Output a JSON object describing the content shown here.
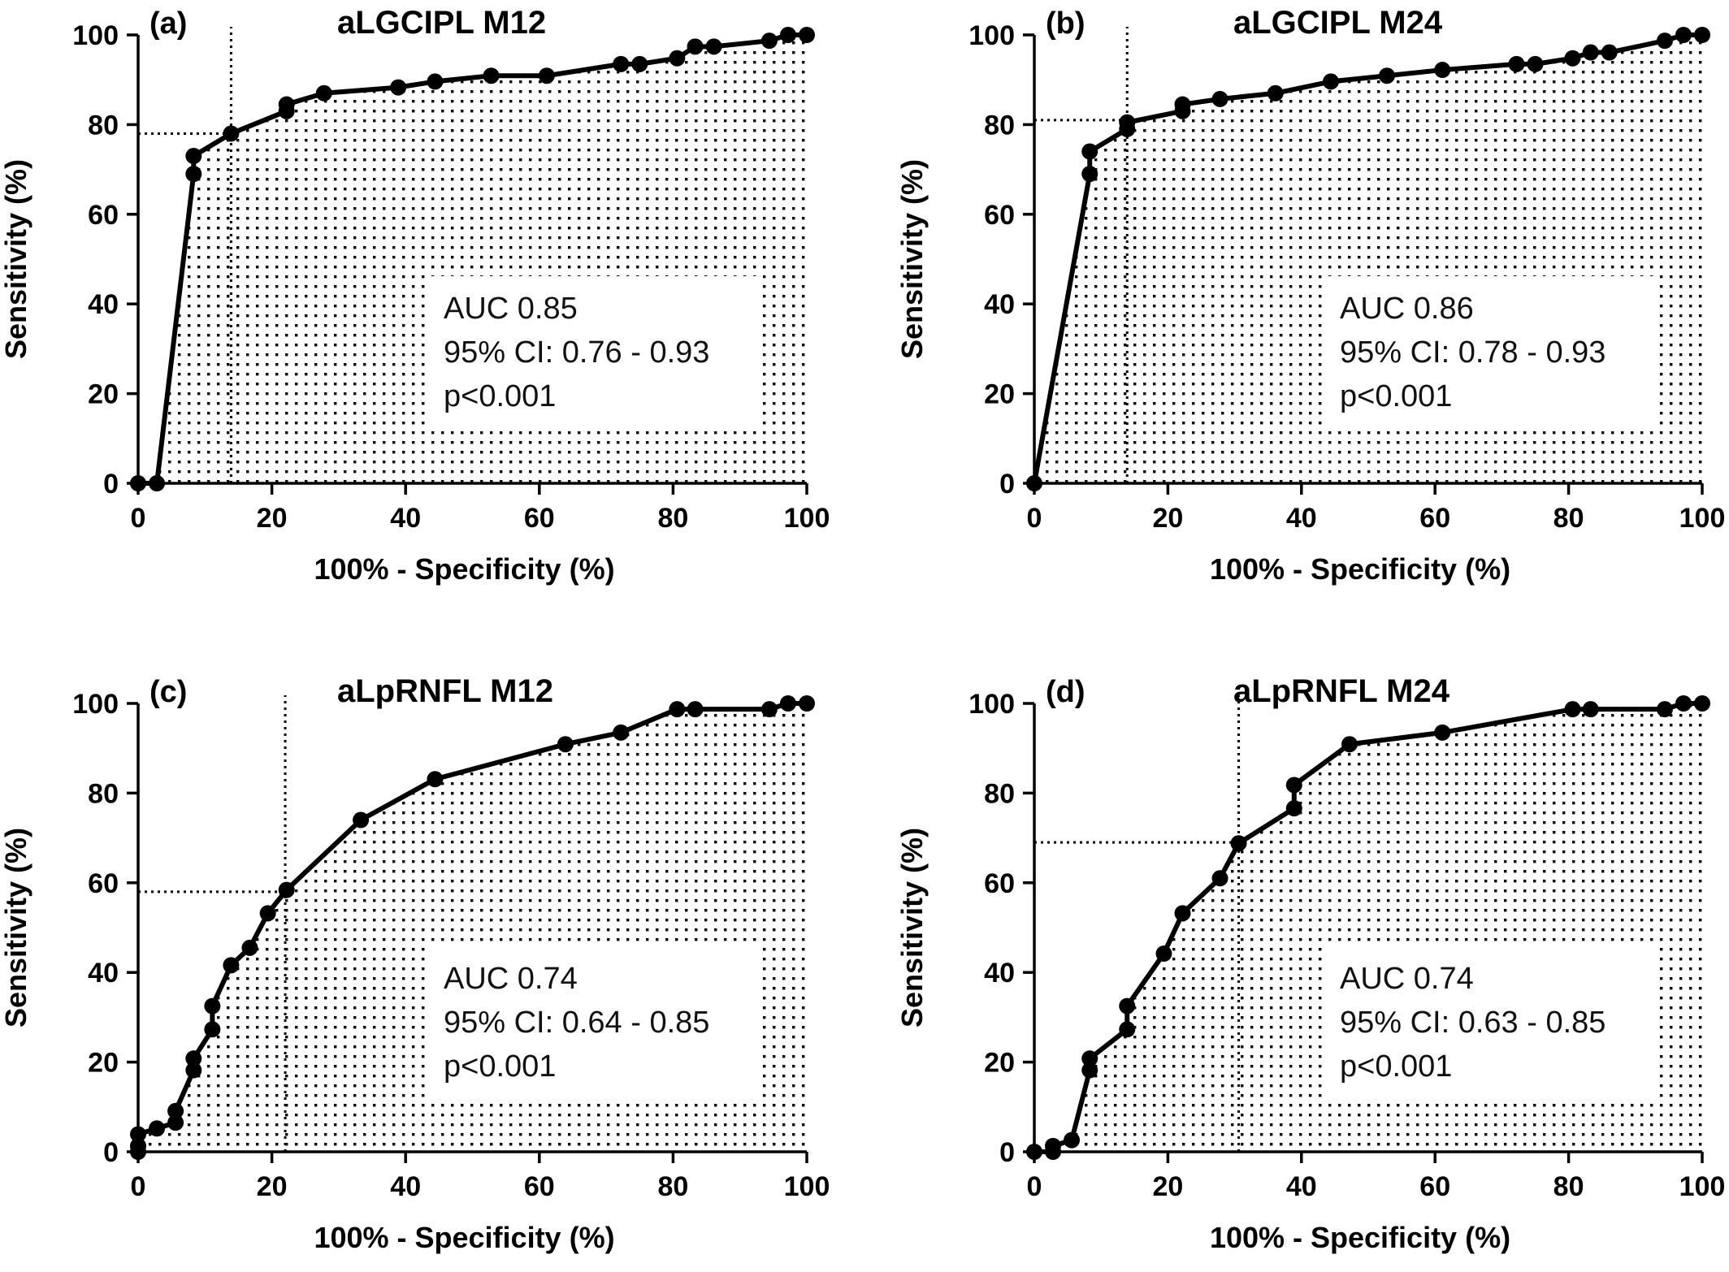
{
  "chart_data": [
    {
      "type": "line",
      "panel_label": "(a)",
      "title": "aLGCIPL M12",
      "xlabel": "100% - Specificity (%)",
      "ylabel": "Sensitivity (%)",
      "xlim": [
        0,
        100
      ],
      "ylim": [
        0,
        100
      ],
      "xticks": [
        "0",
        "20",
        "40",
        "60",
        "80",
        "100"
      ],
      "yticks": [
        "0",
        "20",
        "40",
        "60",
        "80",
        "100"
      ],
      "fill": "dotted",
      "x": [
        0,
        2.8,
        8.3,
        8.3,
        13.9,
        22.2,
        22.2,
        27.8,
        38.9,
        44.4,
        52.8,
        61.1,
        72.2,
        75.0,
        80.6,
        83.3,
        86.1,
        94.4,
        97.2,
        100
      ],
      "y": [
        0,
        0,
        69,
        73,
        78,
        83,
        84.5,
        87,
        88.3,
        89.6,
        90.9,
        90.9,
        93.5,
        93.5,
        94.8,
        97.4,
        97.4,
        98.7,
        100,
        100
      ],
      "cutoff": {
        "x": 13.9,
        "y": 78
      },
      "stats": [
        "AUC  0.85",
        "95% CI: 0.76 - 0.93",
        "p<0.001"
      ]
    },
    {
      "type": "line",
      "panel_label": "(b)",
      "title": "aLGCIPL M24",
      "xlabel": "100% - Specificity (%)",
      "ylabel": "Sensitivity (%)",
      "xlim": [
        0,
        100
      ],
      "ylim": [
        0,
        100
      ],
      "xticks": [
        "0",
        "20",
        "40",
        "60",
        "80",
        "100"
      ],
      "yticks": [
        "0",
        "20",
        "40",
        "60",
        "80",
        "100"
      ],
      "fill": "dotted",
      "x": [
        0,
        8.3,
        8.3,
        13.9,
        13.9,
        22.2,
        22.2,
        27.8,
        36.1,
        44.4,
        52.8,
        61.1,
        72.2,
        75.0,
        80.6,
        83.3,
        86.1,
        94.4,
        97.2,
        100
      ],
      "y": [
        0,
        69,
        74,
        79,
        80.5,
        83,
        84.5,
        85.7,
        87,
        89.6,
        90.9,
        92.2,
        93.5,
        93.5,
        94.8,
        96.1,
        96.1,
        98.7,
        100,
        100
      ],
      "cutoff": {
        "x": 13.9,
        "y": 81
      },
      "stats": [
        "AUC  0.86",
        "95% CI: 0.78 - 0.93",
        "p<0.001"
      ]
    },
    {
      "type": "line",
      "panel_label": "(c)",
      "title": "aLpRNFL M12",
      "xlabel": "100% - Specificity (%)",
      "ylabel": "Sensitivity (%)",
      "xlim": [
        0,
        100
      ],
      "ylim": [
        0,
        100
      ],
      "xticks": [
        "0",
        "20",
        "40",
        "60",
        "80",
        "100"
      ],
      "yticks": [
        "0",
        "20",
        "40",
        "60",
        "80",
        "100"
      ],
      "fill": "dotted",
      "x": [
        0,
        0,
        0,
        2.8,
        5.6,
        5.6,
        8.3,
        8.3,
        11.1,
        11.1,
        13.9,
        16.7,
        19.4,
        22.2,
        33.3,
        44.4,
        63.9,
        72.2,
        80.6,
        83.3,
        94.4,
        97.2,
        100
      ],
      "y": [
        0,
        1.3,
        3.9,
        5.2,
        6.5,
        9.1,
        18.2,
        20.8,
        27.3,
        32.5,
        41.6,
        45.5,
        53.2,
        58.4,
        74.0,
        83.1,
        90.9,
        93.5,
        98.7,
        98.7,
        98.7,
        100,
        100
      ],
      "cutoff": {
        "x": 22,
        "y": 58
      },
      "stats": [
        "AUC  0.74",
        "95% CI: 0.64 - 0.85",
        "p<0.001"
      ]
    },
    {
      "type": "line",
      "panel_label": "(d)",
      "title": "aLpRNFL M24",
      "xlabel": "100% - Specificity (%)",
      "ylabel": "Sensitivity (%)",
      "xlim": [
        0,
        100
      ],
      "ylim": [
        0,
        100
      ],
      "xticks": [
        "0",
        "20",
        "40",
        "60",
        "80",
        "100"
      ],
      "yticks": [
        "0",
        "20",
        "40",
        "60",
        "80",
        "100"
      ],
      "fill": "dotted",
      "x": [
        0,
        2.8,
        2.8,
        5.6,
        8.3,
        8.3,
        13.9,
        13.9,
        19.4,
        22.2,
        27.8,
        30.6,
        38.9,
        38.9,
        47.2,
        61.1,
        80.6,
        83.3,
        94.4,
        97.2,
        100
      ],
      "y": [
        0,
        0,
        1.3,
        2.6,
        18.2,
        20.8,
        27.3,
        32.5,
        44.2,
        53.2,
        61.0,
        68.8,
        76.6,
        81.8,
        90.9,
        93.5,
        98.7,
        98.7,
        98.7,
        100,
        100
      ],
      "cutoff": {
        "x": 30.6,
        "y": 69
      },
      "stats": [
        "AUC  0.74",
        "95% CI: 0.63 - 0.85",
        "p<0.001"
      ]
    }
  ]
}
